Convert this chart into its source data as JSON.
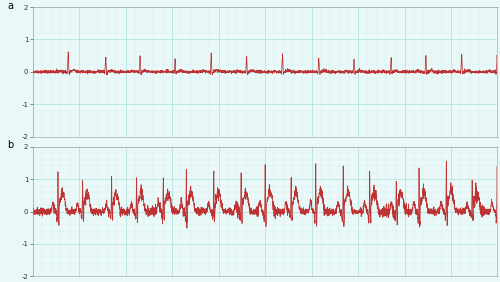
{
  "title_a": "a",
  "title_b": "b",
  "ylim": [
    -2,
    2
  ],
  "yticks": [
    -2,
    -1,
    0,
    1,
    2
  ],
  "background_color": "#eaf8f8",
  "grid_color_major": "#aadddd",
  "grid_color_minor": "#cceef0",
  "line_color": "#bb2222",
  "line_width": 0.55,
  "figsize": [
    5.0,
    2.82
  ],
  "dpi": 100,
  "label_fontsize": 7,
  "tick_fontsize": 5.0
}
